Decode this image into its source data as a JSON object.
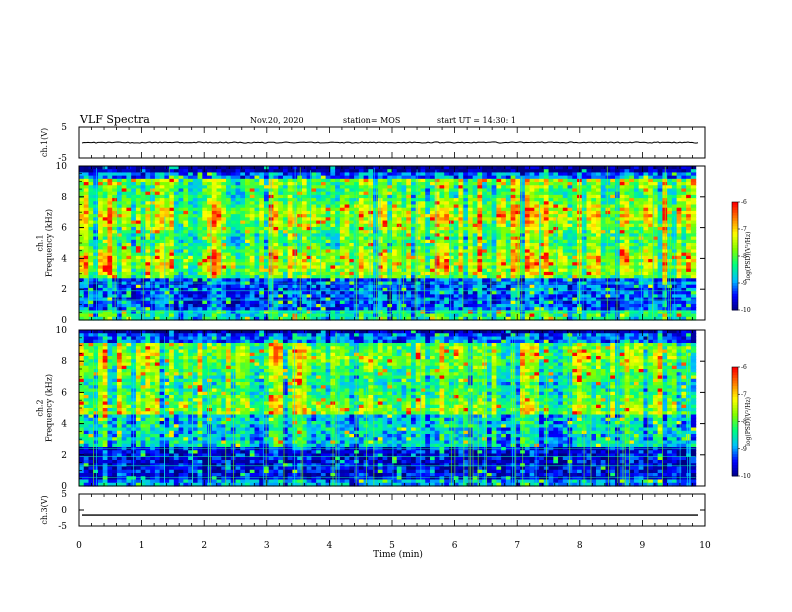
{
  "header": {
    "title": "VLF Spectra",
    "date": "Nov.20, 2020",
    "station": "station= MOS",
    "start": "start  UT =  14:30: 1"
  },
  "chart_data": [
    {
      "type": "line",
      "ylabel": "ch.1(V)",
      "ylim": [
        -5,
        5
      ],
      "yticks": [
        "5",
        "-5"
      ],
      "xlim": [
        0,
        10
      ],
      "series": [
        {
          "approx_value": 0
        }
      ]
    },
    {
      "type": "heatmap",
      "ylabel": "ch.1\nFrequency (kHz)",
      "ylim": [
        0,
        10
      ],
      "yticks": [
        "0",
        "2",
        "4",
        "6",
        "8",
        "10"
      ],
      "xlim": [
        0,
        9.85
      ],
      "intense_band_khz": [
        3,
        9
      ],
      "colorbar": {
        "label": "log(PSD)(V²/Hz)",
        "range": [
          -10,
          -6
        ],
        "ticks": [
          "-6",
          "-7",
          "-8",
          "-9",
          "-10"
        ]
      }
    },
    {
      "type": "heatmap",
      "ylabel": "ch.2\nFrequency (kHz)",
      "ylim": [
        0,
        10
      ],
      "yticks": [
        "0",
        "2",
        "4",
        "6",
        "8",
        "10"
      ],
      "xlim": [
        0,
        9.85
      ],
      "intense_band_khz": [
        5,
        9
      ],
      "colorbar": {
        "label": "log(PSD)(V²/Hz)",
        "range": [
          -10,
          -6
        ],
        "ticks": [
          "-6",
          "-7",
          "-8",
          "-9",
          "-10"
        ]
      }
    },
    {
      "type": "line",
      "ylabel": "ch.3(V)",
      "ylim": [
        -5,
        5
      ],
      "yticks": [
        "5",
        "0",
        "-5"
      ],
      "xlim": [
        0,
        10
      ],
      "series": [
        {
          "approx_value": -1.6
        }
      ]
    }
  ],
  "xaxis": {
    "label": "Time  (min)",
    "ticks": [
      "0",
      "1",
      "2",
      "3",
      "4",
      "5",
      "6",
      "7",
      "8",
      "9",
      "10"
    ]
  },
  "colors": {
    "colormap": [
      "#000080",
      "#0000ff",
      "#00bfff",
      "#00ff7f",
      "#7fff00",
      "#ffff00",
      "#ff8000",
      "#ff0000",
      "#ffffff"
    ]
  }
}
